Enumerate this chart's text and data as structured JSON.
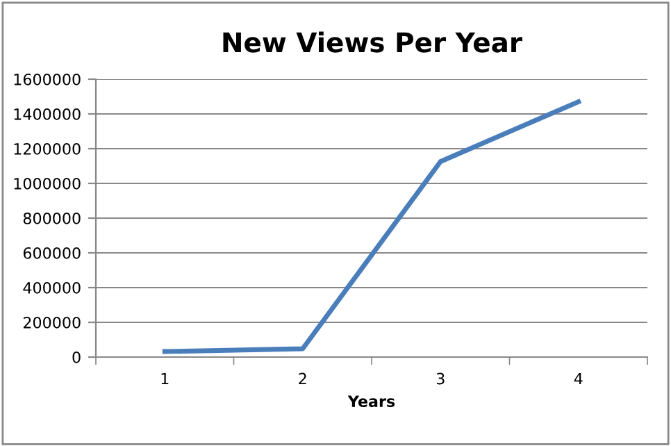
{
  "chart_data": {
    "type": "line",
    "title": "New Views Per Year",
    "xlabel": "Years",
    "categories": [
      "1",
      "2",
      "3",
      "4"
    ],
    "series": [
      {
        "color": "#4a7ebb",
        "values": [
          32000,
          48000,
          1126000,
          1470000
        ]
      }
    ],
    "ylim": [
      0,
      1600000
    ],
    "yticks": [
      0,
      200000,
      400000,
      600000,
      800000,
      1000000,
      1200000,
      1400000,
      1600000
    ],
    "grid": "y",
    "marker": "none",
    "line_style": "solid"
  }
}
